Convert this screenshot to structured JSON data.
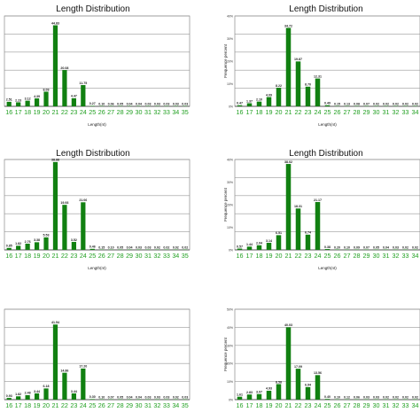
{
  "chart_data": [
    {
      "type": "bar",
      "title": "Length Distribution",
      "xlabel": "Length(nt)",
      "ylabel": "",
      "categories": [
        "16",
        "17",
        "18",
        "19",
        "20",
        "21",
        "22",
        "23",
        "24",
        "25",
        "26",
        "27",
        "28",
        "29",
        "30",
        "31",
        "32",
        "33",
        "34",
        "35"
      ],
      "values": [
        2.51,
        2.23,
        3.12,
        4.39,
        8.09,
        44.83,
        20.08,
        4.47,
        11.75,
        0.27,
        0.1,
        0.06,
        0.05,
        0.04,
        0.04,
        0.03,
        0.03,
        0.03,
        0.03,
        0.03
      ],
      "value_labels": [
        "2.51",
        "2.23",
        "3.12",
        "4.39",
        "8.09",
        "44.83",
        "20.08",
        "4.47",
        "11.75",
        "0.27",
        "0.10",
        "0.06",
        "0.05",
        "0.04",
        "0.04",
        "0.03",
        "0.03",
        "0.03",
        "0.03",
        "0.03"
      ],
      "ylim": [
        0,
        50
      ],
      "yticks": [],
      "grid": true,
      "bar_color": "#118011",
      "tick_color": "#22a022"
    },
    {
      "type": "bar",
      "title": "Length Distribution",
      "xlabel": "Length(nt)",
      "ylabel": "Frequence percent",
      "categories": [
        "16",
        "17",
        "18",
        "19",
        "20",
        "21",
        "22",
        "23",
        "24",
        "25",
        "26",
        "27",
        "28",
        "29",
        "30",
        "31",
        "32",
        "33",
        "34"
      ],
      "values": [
        0.47,
        1.37,
        2.1,
        4.09,
        8.22,
        34.72,
        19.87,
        8.7,
        12.31,
        0.49,
        0.15,
        0.13,
        0.08,
        0.07,
        0.02,
        0.02,
        0.02,
        0.02,
        0.02
      ],
      "value_labels": [
        "0.47",
        "1.37",
        "2.10",
        "4.09",
        "8.22",
        "34.72",
        "19.87",
        "8.70",
        "12.31",
        "0.49",
        "0.15",
        "0.13",
        "0.08",
        "0.07",
        "0.02",
        "0.02",
        "0.02",
        "0.02",
        "0.02"
      ],
      "ylim": [
        0,
        40
      ],
      "yticks": [
        "0%",
        "10%",
        "20%",
        "30%",
        "40%"
      ],
      "grid": true,
      "bar_color": "#118011",
      "tick_color": "#22a022"
    },
    {
      "type": "bar",
      "title": "Length Distribution",
      "xlabel": "Length(nt)",
      "ylabel": "",
      "categories": [
        "16",
        "17",
        "18",
        "19",
        "20",
        "21",
        "22",
        "23",
        "24",
        "25",
        "26",
        "27",
        "28",
        "29",
        "30",
        "31",
        "32",
        "33",
        "34",
        "35"
      ],
      "values": [
        0.85,
        1.82,
        2.76,
        3.38,
        5.53,
        38.88,
        19.93,
        3.52,
        21.06,
        0.46,
        0.15,
        0.1,
        0.05,
        0.04,
        0.03,
        0.03,
        0.02,
        0.02,
        0.02,
        0.02
      ],
      "value_labels": [
        "0.85",
        "1.82",
        "2.76",
        "3.38",
        "5.53",
        "38.88",
        "19.93",
        "3.52",
        "21.06",
        "0.46",
        "0.15",
        "0.10",
        "0.05",
        "0.04",
        "0.03",
        "0.03",
        "0.02",
        "0.02",
        "0.02",
        "0.02"
      ],
      "ylim": [
        0,
        40
      ],
      "yticks": [],
      "grid": true,
      "bar_color": "#118011",
      "tick_color": "#22a022"
    },
    {
      "type": "bar",
      "title": "Length Distribution",
      "xlabel": "Length(nt)",
      "ylabel": "Frequence percent",
      "categories": [
        "16",
        "17",
        "18",
        "19",
        "20",
        "21",
        "22",
        "23",
        "24",
        "25",
        "26",
        "27",
        "28",
        "29",
        "30",
        "31",
        "32",
        "33",
        "34"
      ],
      "values": [
        0.57,
        1.44,
        2.04,
        3.14,
        6.51,
        38.02,
        18.31,
        6.74,
        21.17,
        0.38,
        0.2,
        0.1,
        0.09,
        0.07,
        0.05,
        0.04,
        0.03,
        0.02,
        0.02
      ],
      "value_labels": [
        "0.57",
        "1.44",
        "2.04",
        "3.14",
        "6.51",
        "38.02",
        "18.31",
        "6.74",
        "21.17",
        "0.38",
        "0.20",
        "0.10",
        "0.09",
        "0.07",
        "0.05",
        "0.04",
        "0.03",
        "0.02",
        "0.02"
      ],
      "ylim": [
        0,
        40
      ],
      "yticks": [
        "0%",
        "10%",
        "20%",
        "30%",
        "40%"
      ],
      "grid": true,
      "bar_color": "#118011",
      "tick_color": "#22a022"
    },
    {
      "type": "bar",
      "title": "",
      "xlabel": "Length(nt)",
      "ylabel": "",
      "categories": [
        "16",
        "17",
        "18",
        "19",
        "20",
        "21",
        "22",
        "23",
        "24",
        "25",
        "26",
        "27",
        "28",
        "29",
        "30",
        "31",
        "32",
        "33",
        "34",
        "35"
      ],
      "values": [
        0.93,
        1.82,
        2.48,
        3.44,
        6.18,
        41.54,
        14.86,
        3.44,
        17.2,
        0.3,
        0.1,
        0.07,
        0.05,
        0.04,
        0.04,
        0.03,
        0.03,
        0.03,
        0.02,
        0.03
      ],
      "value_labels": [
        "0.93",
        "1.82",
        "2.48",
        "3.44",
        "6.18",
        "41.54",
        "14.86",
        "3.44",
        "17.20",
        "0.30",
        "0.10",
        "0.07",
        "0.05",
        "0.04",
        "0.04",
        "0.03",
        "0.03",
        "0.03",
        "0.02",
        "0.03"
      ],
      "ylim": [
        0,
        50
      ],
      "yticks": [],
      "grid": true,
      "bar_color": "#118011",
      "tick_color": "#22a022"
    },
    {
      "type": "bar",
      "title": "",
      "xlabel": "Length(nt)",
      "ylabel": "Frequence percent",
      "categories": [
        "16",
        "17",
        "18",
        "19",
        "20",
        "21",
        "22",
        "23",
        "24",
        "25",
        "26",
        "27",
        "28",
        "29",
        "30",
        "31",
        "32",
        "33",
        "34"
      ],
      "values": [
        1.61,
        2.83,
        3.07,
        4.93,
        8.58,
        40.03,
        17.09,
        6.94,
        13.56,
        0.4,
        0.1,
        0.12,
        0.06,
        0.03,
        0.03,
        0.02,
        0.02,
        0.02,
        0.02
      ],
      "value_labels": [
        "1.61",
        "2.83",
        "3.07",
        "4.93",
        "8.58",
        "40.03",
        "17.09",
        "6.94",
        "13.56",
        "0.40",
        "0.10",
        "0.12",
        "0.06",
        "0.03",
        "0.03",
        "0.02",
        "0.02",
        "0.02",
        "0.02"
      ],
      "ylim": [
        0,
        50
      ],
      "yticks": [
        "0%",
        "10%",
        "20%",
        "30%",
        "40%",
        "50%"
      ],
      "grid": true,
      "bar_color": "#118011",
      "tick_color": "#22a022"
    }
  ]
}
